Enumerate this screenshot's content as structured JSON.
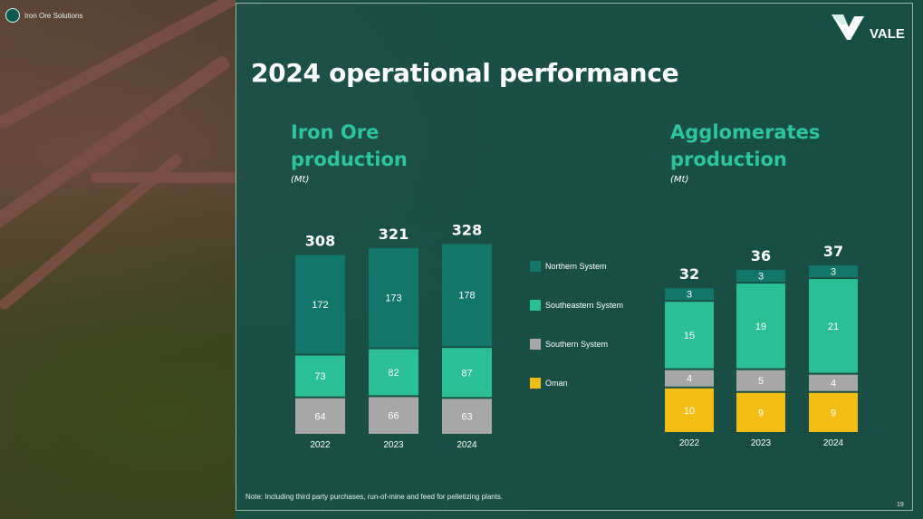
{
  "header": {
    "unit_label": "Iron Ore Solutions",
    "brand": "VALE"
  },
  "page_title": "2024 operational performance",
  "legend": [
    {
      "name": "Northern System",
      "color": "#12766a"
    },
    {
      "name": "Southeastern System",
      "color": "#2bbf98"
    },
    {
      "name": "Southern System",
      "color": "#a7a7a7"
    },
    {
      "name": "Oman",
      "color": "#f3bd14"
    }
  ],
  "footer": {
    "note": "Note: Including third party purchases, run-of-mine and feed for pelletizing plants.",
    "page_number": "19"
  },
  "chart_data": [
    {
      "type": "bar",
      "stacked": true,
      "title": "Iron Ore production",
      "unit": "(Mt)",
      "categories": [
        "2022",
        "2023",
        "2024"
      ],
      "series": [
        {
          "name": "Southern System",
          "color": "#a7a7a7",
          "values": [
            64,
            66,
            63
          ]
        },
        {
          "name": "Southeastern System",
          "color": "#2bbf98",
          "values": [
            73,
            82,
            87
          ]
        },
        {
          "name": "Northern System",
          "color": "#12766a",
          "values": [
            172,
            173,
            178
          ]
        }
      ],
      "totals": [
        308,
        321,
        328
      ],
      "ylim": [
        0,
        330
      ]
    },
    {
      "type": "bar",
      "stacked": true,
      "title": "Agglomerates production",
      "unit": "(Mt)",
      "categories": [
        "2022",
        "2023",
        "2024"
      ],
      "series": [
        {
          "name": "Oman",
          "color": "#f3bd14",
          "values": [
            10,
            9,
            9
          ]
        },
        {
          "name": "Southern System",
          "color": "#a7a7a7",
          "values": [
            4,
            5,
            4
          ]
        },
        {
          "name": "Southeastern System",
          "color": "#2bbf98",
          "values": [
            15,
            19,
            21
          ]
        },
        {
          "name": "Northern System",
          "color": "#12766a",
          "values": [
            3,
            3,
            3
          ]
        }
      ],
      "totals": [
        32,
        36,
        37
      ],
      "ylim": [
        0,
        37
      ]
    }
  ]
}
